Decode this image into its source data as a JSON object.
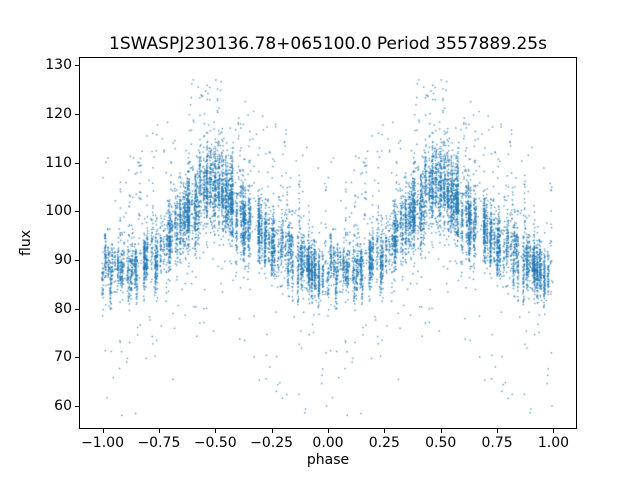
{
  "figure": {
    "background": "#ffffff"
  },
  "chart_data": {
    "type": "scatter",
    "title": "1SWASPJ230136.78+065100.0 Period 3557889.25s",
    "xlabel": "phase",
    "ylabel": "flux",
    "xlim": [
      -1.1,
      1.1
    ],
    "ylim": [
      55.5,
      131.5
    ],
    "x_tick_values": [
      -1.0,
      -0.75,
      -0.5,
      -0.25,
      0.0,
      0.25,
      0.5,
      0.75,
      1.0
    ],
    "x_tick_labels": [
      "−1.00",
      "−0.75",
      "−0.50",
      "−0.25",
      "0.00",
      "0.25",
      "0.50",
      "0.75",
      "1.00"
    ],
    "y_tick_values": [
      60,
      70,
      80,
      90,
      100,
      110,
      120,
      130
    ],
    "y_tick_labels": [
      "60",
      "70",
      "80",
      "90",
      "100",
      "110",
      "120",
      "130"
    ],
    "legend": null,
    "grid": false,
    "marker_color": "#1f77b4",
    "marker_size_px": 1.4,
    "marker_alpha": 0.75,
    "flux_clip": [
      58,
      128
    ],
    "description": "Phase-folded light curve scatter, duplicated over phase -1 to 1: baseline flux near 87, broad maxima near 106 at phase ±0.5, vertical night-streaks, outliers from ~60 up to ~127.",
    "mean_curve": {
      "phase": [
        0,
        0.05,
        0.1,
        0.15,
        0.2,
        0.25,
        0.3,
        0.35,
        0.4,
        0.45,
        0.5,
        0.55,
        0.6,
        0.65,
        0.7,
        0.75,
        0.8,
        0.85,
        0.9,
        0.95,
        1.0
      ],
      "flux": [
        87,
        87,
        87.5,
        88.5,
        90,
        92.5,
        95,
        98,
        101.5,
        105,
        106,
        103.5,
        99.5,
        96.5,
        95,
        93.5,
        92,
        90.5,
        89,
        87.5,
        87
      ],
      "sigma": [
        2.4,
        2.4,
        2.4,
        2.5,
        2.7,
        3.0,
        3.3,
        3.6,
        4.0,
        4.4,
        4.4,
        4.0,
        3.6,
        3.3,
        3.0,
        2.8,
        2.6,
        2.5,
        2.4,
        2.4,
        2.4
      ]
    },
    "columns": {
      "count": 150,
      "min_points": 18,
      "max_points": 48,
      "offset_sigma": 2.0,
      "phase_jitter": 0.006
    },
    "spikes": {
      "count": 28,
      "points": 9,
      "min_height": 8,
      "max_height": 24
    },
    "outliers": {
      "high_count": 340,
      "high_range": 25,
      "low_count": 210,
      "low_range": 30,
      "power": 2
    },
    "seed": 7
  }
}
